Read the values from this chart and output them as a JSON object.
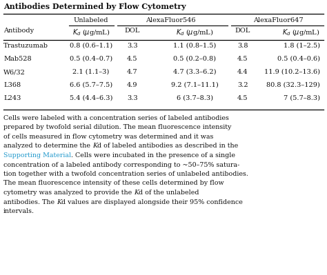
{
  "title": "Antibodies Determined by Flow Cytometry",
  "rows": [
    [
      "Trastuzumab",
      "0.8 (0.6–1.1)",
      "3.3",
      "1.1 (0.8–1.5)",
      "3.8",
      "1.8 (1–2.5)"
    ],
    [
      "Mab528",
      "0.5 (0.4–0.7)",
      "4.5",
      "0.5 (0.2–0.8)",
      "4.5",
      "0.5 (0.4–0.6)"
    ],
    [
      "W6/32",
      "2.1 (1.1–3)",
      "4.7",
      "4.7 (3.3–6.2)",
      "4.4",
      "11.9 (10.2–13.6)"
    ],
    [
      "L368",
      "6.6 (5.7–7.5)",
      "4.9",
      "9.2 (7.1–11.1)",
      "3.2",
      "80.8 (32.3–129)"
    ],
    [
      "L243",
      "5.4 (4.4–6.3)",
      "3.3",
      "6 (3.7–8.3)",
      "4.5",
      "7 (5.7–8.3)"
    ]
  ],
  "footnote_parts": [
    [
      [
        "black",
        "Cells were labeled with a concentration series of labeled antibodies"
      ]
    ],
    [
      [
        "black",
        "prepared by twofold serial dilution. The mean fluorescence intensity"
      ]
    ],
    [
      [
        "black",
        "of cells measured in flow cytometry was determined and it was"
      ]
    ],
    [
      [
        "black",
        "analyzed to determine the "
      ],
      [
        "italic",
        "K"
      ],
      [
        "black",
        "d of labeled antibodies as described in the"
      ]
    ],
    [
      [
        "cyan",
        "Supporting Material"
      ],
      [
        "black",
        ". Cells were incubated in the presence of a single"
      ]
    ],
    [
      [
        "black",
        "concentration of a labeled antibody corresponding to ~50–75% satura-"
      ]
    ],
    [
      [
        "black",
        "tion together with a twofold concentration series of unlabeled antibodies."
      ]
    ],
    [
      [
        "black",
        "The mean fluorescence intensity of these cells determined by flow"
      ]
    ],
    [
      [
        "black",
        "cytometry was analyzed to provide the "
      ],
      [
        "italic",
        "K"
      ],
      [
        "black",
        "d of the unlabeled"
      ]
    ],
    [
      [
        "black",
        "antibodies. The "
      ],
      [
        "italic",
        "K"
      ],
      [
        "black",
        "d values are displayed alongside their 95% confidence"
      ]
    ],
    [
      [
        "black",
        "intervals."
      ]
    ]
  ],
  "supporting_material_color": "#2299CC",
  "background_color": "#ffffff",
  "text_color": "#111111",
  "font_size": 7.0,
  "title_font_size": 8.0
}
